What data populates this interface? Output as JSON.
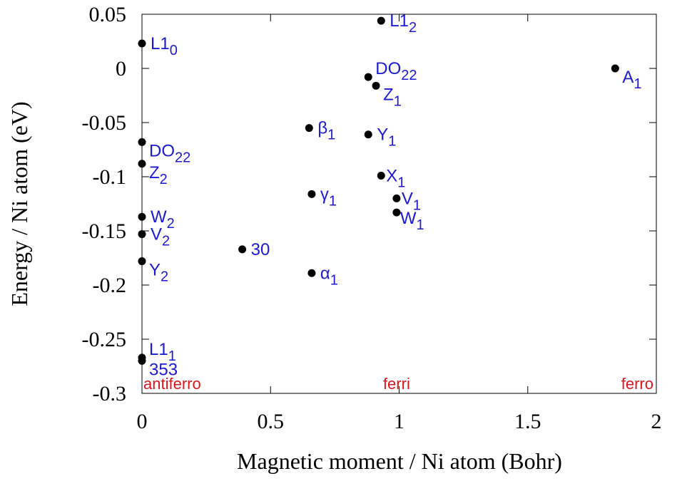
{
  "chart_data": {
    "type": "scatter",
    "xlabel": "Magnetic moment / Ni atom (Bohr)",
    "ylabel": "Energy / Ni atom (eV)",
    "xlim": [
      0,
      2
    ],
    "ylim": [
      -0.3,
      0.05
    ],
    "xticks": [
      "0",
      "0.5",
      "1",
      "1.5",
      "2"
    ],
    "yticks": [
      "0.05",
      "0",
      "-0.05",
      "-0.1",
      "-0.15",
      "-0.2",
      "-0.25",
      "-0.3"
    ],
    "grid": false,
    "points": [
      {
        "x": 0.0,
        "y": 0.023,
        "label": "L1",
        "sub": "0",
        "lpos": "right"
      },
      {
        "x": 0.0,
        "y": -0.068,
        "label": "DO",
        "sub": "22",
        "lpos": "below-right"
      },
      {
        "x": 0.0,
        "y": -0.088,
        "label": "Z",
        "sub": "2",
        "lpos": "below-right"
      },
      {
        "x": 0.0,
        "y": -0.137,
        "label": "W",
        "sub": "2",
        "lpos": "right"
      },
      {
        "x": 0.0,
        "y": -0.153,
        "label": "V",
        "sub": "2",
        "lpos": "right"
      },
      {
        "x": 0.0,
        "y": -0.178,
        "label": "Y",
        "sub": "2",
        "lpos": "below-right"
      },
      {
        "x": 0.0,
        "y": -0.267,
        "label": "L1",
        "sub": "1",
        "lpos": "above-right"
      },
      {
        "x": 0.0,
        "y": -0.27,
        "label": "353",
        "sub": "",
        "lpos": "below-right"
      },
      {
        "x": 0.39,
        "y": -0.167,
        "label": "30",
        "sub": "",
        "lpos": "right"
      },
      {
        "x": 0.65,
        "y": -0.055,
        "label": "β",
        "sub": "1",
        "lpos": "right"
      },
      {
        "x": 0.66,
        "y": -0.116,
        "label": "γ",
        "sub": "1",
        "lpos": "right"
      },
      {
        "x": 0.66,
        "y": -0.189,
        "label": "α",
        "sub": "1",
        "lpos": "right"
      },
      {
        "x": 0.88,
        "y": -0.008,
        "label": "DO",
        "sub": "22",
        "lpos": "above-right"
      },
      {
        "x": 0.91,
        "y": -0.016,
        "label": "Z",
        "sub": "1",
        "lpos": "below-right"
      },
      {
        "x": 0.88,
        "y": -0.061,
        "label": "Y",
        "sub": "1",
        "lpos": "right"
      },
      {
        "x": 0.93,
        "y": 0.044,
        "label": "L1",
        "sub": "2",
        "lpos": "right"
      },
      {
        "x": 0.93,
        "y": -0.099,
        "label": "X",
        "sub": "1",
        "lpos": "right-close"
      },
      {
        "x": 0.99,
        "y": -0.12,
        "label": "V",
        "sub": "1",
        "lpos": "right-close"
      },
      {
        "x": 0.99,
        "y": -0.133,
        "label": "W",
        "sub": "1",
        "lpos": "below-right-close"
      },
      {
        "x": 1.84,
        "y": 0.0,
        "label": "A",
        "sub": "1",
        "lpos": "below-right"
      }
    ],
    "annotations": [
      {
        "text": "antiferro",
        "x": 0.0,
        "anchor": "start"
      },
      {
        "text": "ferri",
        "x": 0.99,
        "anchor": "middle"
      },
      {
        "text": "ferro",
        "x": 2.0,
        "anchor": "end"
      }
    ],
    "colors": {
      "points": "#000000",
      "labels": "#1a1ad4",
      "annotations": "#e0141e"
    }
  }
}
